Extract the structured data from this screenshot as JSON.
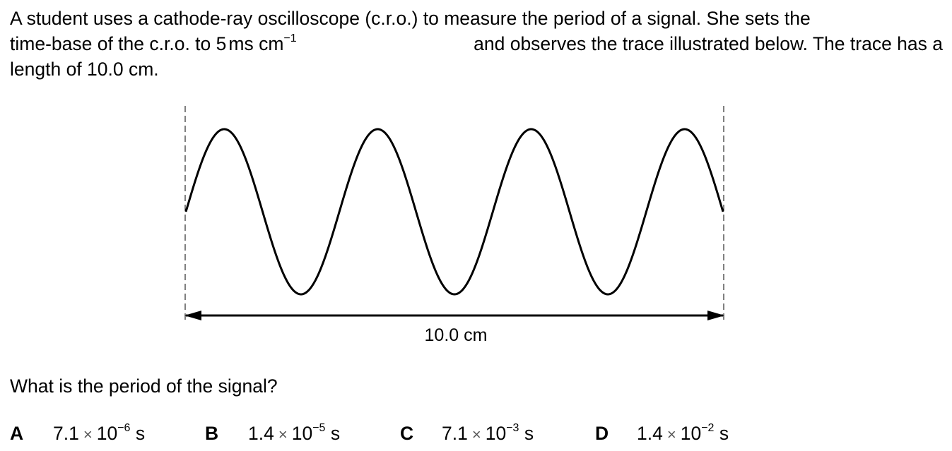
{
  "question": {
    "intro_line1": "A student uses a cathode-ray oscilloscope (c.r.o.) to measure the period of a signal. She sets the",
    "intro_line2_part1": "time-base of the c.r.o. to 5",
    "intro_line2_unit1": "ms",
    "intro_line2_unit2": "cm",
    "intro_line2_exp": "−1",
    "intro_line2_part2": "and observes the trace illustrated below. The trace has a",
    "intro_line3": "length of 10.0 cm.",
    "prompt": "What is the period of the signal?"
  },
  "diagram": {
    "trace_length_label": "10.0 cm",
    "complete_cycles_shown": 3.5
  },
  "options": [
    {
      "letter": "A",
      "mantissa": "7.1",
      "times": "×",
      "base": "10",
      "exponent": "−6",
      "unit": "s"
    },
    {
      "letter": "B",
      "mantissa": "1.4",
      "times": "×",
      "base": "10",
      "exponent": "−5",
      "unit": "s"
    },
    {
      "letter": "C",
      "mantissa": "7.1",
      "times": "×",
      "base": "10",
      "exponent": "−3",
      "unit": "s"
    },
    {
      "letter": "D",
      "mantissa": "1.4",
      "times": "×",
      "base": "10",
      "exponent": "−2",
      "unit": "s"
    }
  ]
}
